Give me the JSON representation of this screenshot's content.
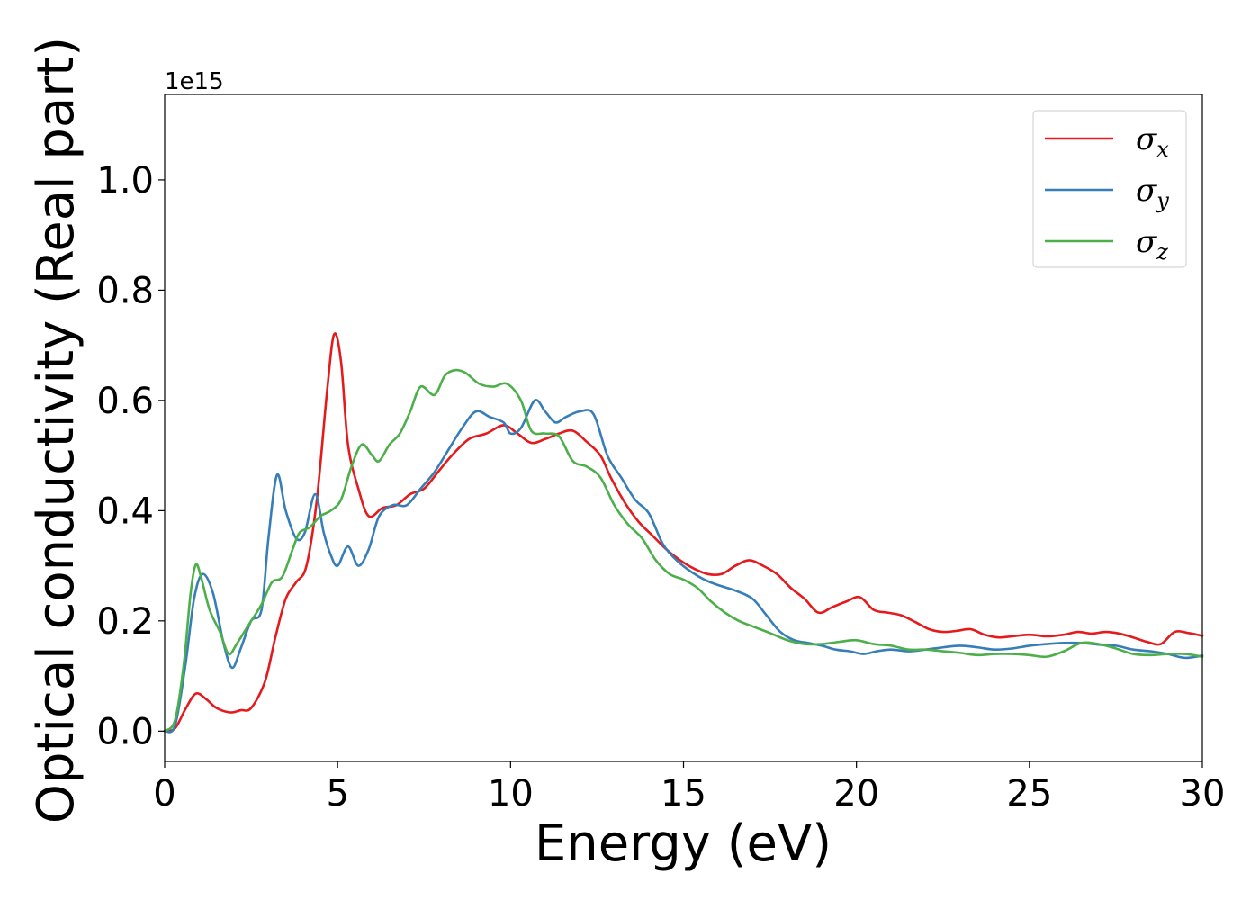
{
  "chart_data": {
    "type": "line",
    "title": "",
    "xlabel": "Energy (eV)",
    "ylabel": "Optical conductivity (Real part)",
    "y_offset_label": "1e15",
    "xlim": [
      0,
      30
    ],
    "ylim": [
      -0.055,
      1.155
    ],
    "x_ticks": [
      0,
      5,
      10,
      15,
      20,
      25,
      30
    ],
    "x_tick_labels": [
      "0",
      "5",
      "10",
      "15",
      "20",
      "25",
      "30"
    ],
    "y_ticks": [
      0.0,
      0.2,
      0.4,
      0.6,
      0.8,
      1.0
    ],
    "y_tick_labels": [
      "0.0",
      "0.2",
      "0.4",
      "0.6",
      "0.8",
      "1.0"
    ],
    "grid": false,
    "legend_position": "top-right",
    "series": [
      {
        "name": "σx",
        "symbol": "σ",
        "subscript": "x",
        "color": "#e41a1c",
        "points": [
          [
            0,
            0
          ],
          [
            0.3,
            0.005
          ],
          [
            0.6,
            0.04
          ],
          [
            0.9,
            0.068
          ],
          [
            1.2,
            0.058
          ],
          [
            1.5,
            0.042
          ],
          [
            1.9,
            0.034
          ],
          [
            2.2,
            0.038
          ],
          [
            2.5,
            0.042
          ],
          [
            2.9,
            0.09
          ],
          [
            3.2,
            0.17
          ],
          [
            3.5,
            0.24
          ],
          [
            3.8,
            0.27
          ],
          [
            4.1,
            0.3
          ],
          [
            4.4,
            0.42
          ],
          [
            4.7,
            0.62
          ],
          [
            4.9,
            0.72
          ],
          [
            5.1,
            0.67
          ],
          [
            5.3,
            0.52
          ],
          [
            5.6,
            0.44
          ],
          [
            5.9,
            0.39
          ],
          [
            6.3,
            0.405
          ],
          [
            6.7,
            0.41
          ],
          [
            7.1,
            0.43
          ],
          [
            7.5,
            0.44
          ],
          [
            7.9,
            0.47
          ],
          [
            8.3,
            0.5
          ],
          [
            8.8,
            0.53
          ],
          [
            9.3,
            0.54
          ],
          [
            9.8,
            0.555
          ],
          [
            10.2,
            0.54
          ],
          [
            10.6,
            0.523
          ],
          [
            11.0,
            0.53
          ],
          [
            11.4,
            0.54
          ],
          [
            11.8,
            0.545
          ],
          [
            12.2,
            0.525
          ],
          [
            12.6,
            0.5
          ],
          [
            12.9,
            0.46
          ],
          [
            13.3,
            0.415
          ],
          [
            13.7,
            0.38
          ],
          [
            14.1,
            0.355
          ],
          [
            14.5,
            0.33
          ],
          [
            14.9,
            0.31
          ],
          [
            15.3,
            0.295
          ],
          [
            15.7,
            0.285
          ],
          [
            16.1,
            0.285
          ],
          [
            16.5,
            0.3
          ],
          [
            16.9,
            0.31
          ],
          [
            17.3,
            0.3
          ],
          [
            17.7,
            0.285
          ],
          [
            18.1,
            0.26
          ],
          [
            18.5,
            0.24
          ],
          [
            18.9,
            0.215
          ],
          [
            19.3,
            0.225
          ],
          [
            19.7,
            0.235
          ],
          [
            20.1,
            0.243
          ],
          [
            20.5,
            0.22
          ],
          [
            20.9,
            0.215
          ],
          [
            21.3,
            0.21
          ],
          [
            21.7,
            0.198
          ],
          [
            22.1,
            0.185
          ],
          [
            22.5,
            0.18
          ],
          [
            22.9,
            0.182
          ],
          [
            23.3,
            0.185
          ],
          [
            23.7,
            0.175
          ],
          [
            24.1,
            0.17
          ],
          [
            24.5,
            0.172
          ],
          [
            25.0,
            0.175
          ],
          [
            25.5,
            0.172
          ],
          [
            26.0,
            0.175
          ],
          [
            26.4,
            0.18
          ],
          [
            26.8,
            0.177
          ],
          [
            27.2,
            0.18
          ],
          [
            27.6,
            0.177
          ],
          [
            28.0,
            0.17
          ],
          [
            28.4,
            0.162
          ],
          [
            28.8,
            0.158
          ],
          [
            29.2,
            0.18
          ],
          [
            29.6,
            0.178
          ],
          [
            30.0,
            0.173
          ]
        ]
      },
      {
        "name": "σy",
        "symbol": "σ",
        "subscript": "y",
        "color": "#377eb8",
        "points": [
          [
            0,
            0
          ],
          [
            0.3,
            0.01
          ],
          [
            0.6,
            0.12
          ],
          [
            0.85,
            0.24
          ],
          [
            1.1,
            0.285
          ],
          [
            1.4,
            0.25
          ],
          [
            1.7,
            0.16
          ],
          [
            1.95,
            0.115
          ],
          [
            2.2,
            0.15
          ],
          [
            2.5,
            0.2
          ],
          [
            2.8,
            0.22
          ],
          [
            3.0,
            0.35
          ],
          [
            3.25,
            0.465
          ],
          [
            3.5,
            0.4
          ],
          [
            3.8,
            0.35
          ],
          [
            4.05,
            0.36
          ],
          [
            4.35,
            0.43
          ],
          [
            4.6,
            0.36
          ],
          [
            4.8,
            0.32
          ],
          [
            5.0,
            0.3
          ],
          [
            5.3,
            0.335
          ],
          [
            5.6,
            0.3
          ],
          [
            5.9,
            0.33
          ],
          [
            6.2,
            0.39
          ],
          [
            6.6,
            0.41
          ],
          [
            7.0,
            0.41
          ],
          [
            7.4,
            0.44
          ],
          [
            7.8,
            0.47
          ],
          [
            8.2,
            0.51
          ],
          [
            8.6,
            0.55
          ],
          [
            9.0,
            0.58
          ],
          [
            9.4,
            0.57
          ],
          [
            9.8,
            0.56
          ],
          [
            10.0,
            0.54
          ],
          [
            10.3,
            0.55
          ],
          [
            10.7,
            0.6
          ],
          [
            11.0,
            0.58
          ],
          [
            11.3,
            0.56
          ],
          [
            11.6,
            0.57
          ],
          [
            12.0,
            0.58
          ],
          [
            12.4,
            0.575
          ],
          [
            12.8,
            0.5
          ],
          [
            13.2,
            0.46
          ],
          [
            13.6,
            0.42
          ],
          [
            14.0,
            0.395
          ],
          [
            14.4,
            0.34
          ],
          [
            14.8,
            0.31
          ],
          [
            15.2,
            0.29
          ],
          [
            15.6,
            0.275
          ],
          [
            16.0,
            0.265
          ],
          [
            16.5,
            0.255
          ],
          [
            17.0,
            0.24
          ],
          [
            17.4,
            0.21
          ],
          [
            17.8,
            0.18
          ],
          [
            18.2,
            0.165
          ],
          [
            18.6,
            0.16
          ],
          [
            19.0,
            0.155
          ],
          [
            19.4,
            0.148
          ],
          [
            19.8,
            0.145
          ],
          [
            20.2,
            0.14
          ],
          [
            20.6,
            0.145
          ],
          [
            21.0,
            0.148
          ],
          [
            21.5,
            0.145
          ],
          [
            22.0,
            0.148
          ],
          [
            22.5,
            0.152
          ],
          [
            23.0,
            0.155
          ],
          [
            23.5,
            0.152
          ],
          [
            24.0,
            0.148
          ],
          [
            24.5,
            0.15
          ],
          [
            25.0,
            0.155
          ],
          [
            25.5,
            0.158
          ],
          [
            26.0,
            0.16
          ],
          [
            26.5,
            0.16
          ],
          [
            27.0,
            0.157
          ],
          [
            27.5,
            0.155
          ],
          [
            28.0,
            0.148
          ],
          [
            28.5,
            0.145
          ],
          [
            29.0,
            0.14
          ],
          [
            29.5,
            0.133
          ],
          [
            30.0,
            0.137
          ]
        ]
      },
      {
        "name": "σz",
        "symbol": "σ",
        "subscript": "z",
        "color": "#4daf4a",
        "points": [
          [
            0,
            0
          ],
          [
            0.3,
            0.02
          ],
          [
            0.55,
            0.12
          ],
          [
            0.75,
            0.25
          ],
          [
            0.9,
            0.302
          ],
          [
            1.05,
            0.28
          ],
          [
            1.3,
            0.22
          ],
          [
            1.6,
            0.18
          ],
          [
            1.85,
            0.14
          ],
          [
            2.1,
            0.16
          ],
          [
            2.4,
            0.19
          ],
          [
            2.8,
            0.23
          ],
          [
            3.1,
            0.27
          ],
          [
            3.4,
            0.28
          ],
          [
            3.7,
            0.33
          ],
          [
            3.9,
            0.36
          ],
          [
            4.2,
            0.37
          ],
          [
            4.5,
            0.39
          ],
          [
            4.8,
            0.4
          ],
          [
            5.1,
            0.42
          ],
          [
            5.4,
            0.48
          ],
          [
            5.7,
            0.52
          ],
          [
            6.0,
            0.5
          ],
          [
            6.2,
            0.49
          ],
          [
            6.5,
            0.52
          ],
          [
            6.8,
            0.54
          ],
          [
            7.1,
            0.58
          ],
          [
            7.4,
            0.625
          ],
          [
            7.8,
            0.61
          ],
          [
            8.1,
            0.645
          ],
          [
            8.4,
            0.655
          ],
          [
            8.7,
            0.65
          ],
          [
            9.1,
            0.63
          ],
          [
            9.5,
            0.625
          ],
          [
            9.9,
            0.63
          ],
          [
            10.3,
            0.6
          ],
          [
            10.6,
            0.545
          ],
          [
            11.0,
            0.54
          ],
          [
            11.4,
            0.535
          ],
          [
            11.8,
            0.49
          ],
          [
            12.2,
            0.48
          ],
          [
            12.6,
            0.46
          ],
          [
            13.0,
            0.41
          ],
          [
            13.4,
            0.375
          ],
          [
            13.8,
            0.35
          ],
          [
            14.2,
            0.31
          ],
          [
            14.6,
            0.285
          ],
          [
            15.0,
            0.275
          ],
          [
            15.4,
            0.26
          ],
          [
            15.8,
            0.235
          ],
          [
            16.2,
            0.215
          ],
          [
            16.6,
            0.2
          ],
          [
            17.0,
            0.19
          ],
          [
            17.5,
            0.178
          ],
          [
            18.0,
            0.165
          ],
          [
            18.5,
            0.158
          ],
          [
            19.0,
            0.158
          ],
          [
            19.5,
            0.162
          ],
          [
            20.0,
            0.165
          ],
          [
            20.5,
            0.158
          ],
          [
            21.0,
            0.155
          ],
          [
            21.5,
            0.148
          ],
          [
            22.0,
            0.148
          ],
          [
            22.5,
            0.145
          ],
          [
            23.0,
            0.142
          ],
          [
            23.5,
            0.138
          ],
          [
            24.0,
            0.14
          ],
          [
            24.5,
            0.14
          ],
          [
            25.0,
            0.138
          ],
          [
            25.5,
            0.135
          ],
          [
            26.0,
            0.145
          ],
          [
            26.5,
            0.16
          ],
          [
            27.0,
            0.158
          ],
          [
            27.5,
            0.15
          ],
          [
            28.0,
            0.14
          ],
          [
            28.5,
            0.138
          ],
          [
            29.0,
            0.14
          ],
          [
            29.5,
            0.14
          ],
          [
            30.0,
            0.135
          ]
        ]
      }
    ]
  }
}
